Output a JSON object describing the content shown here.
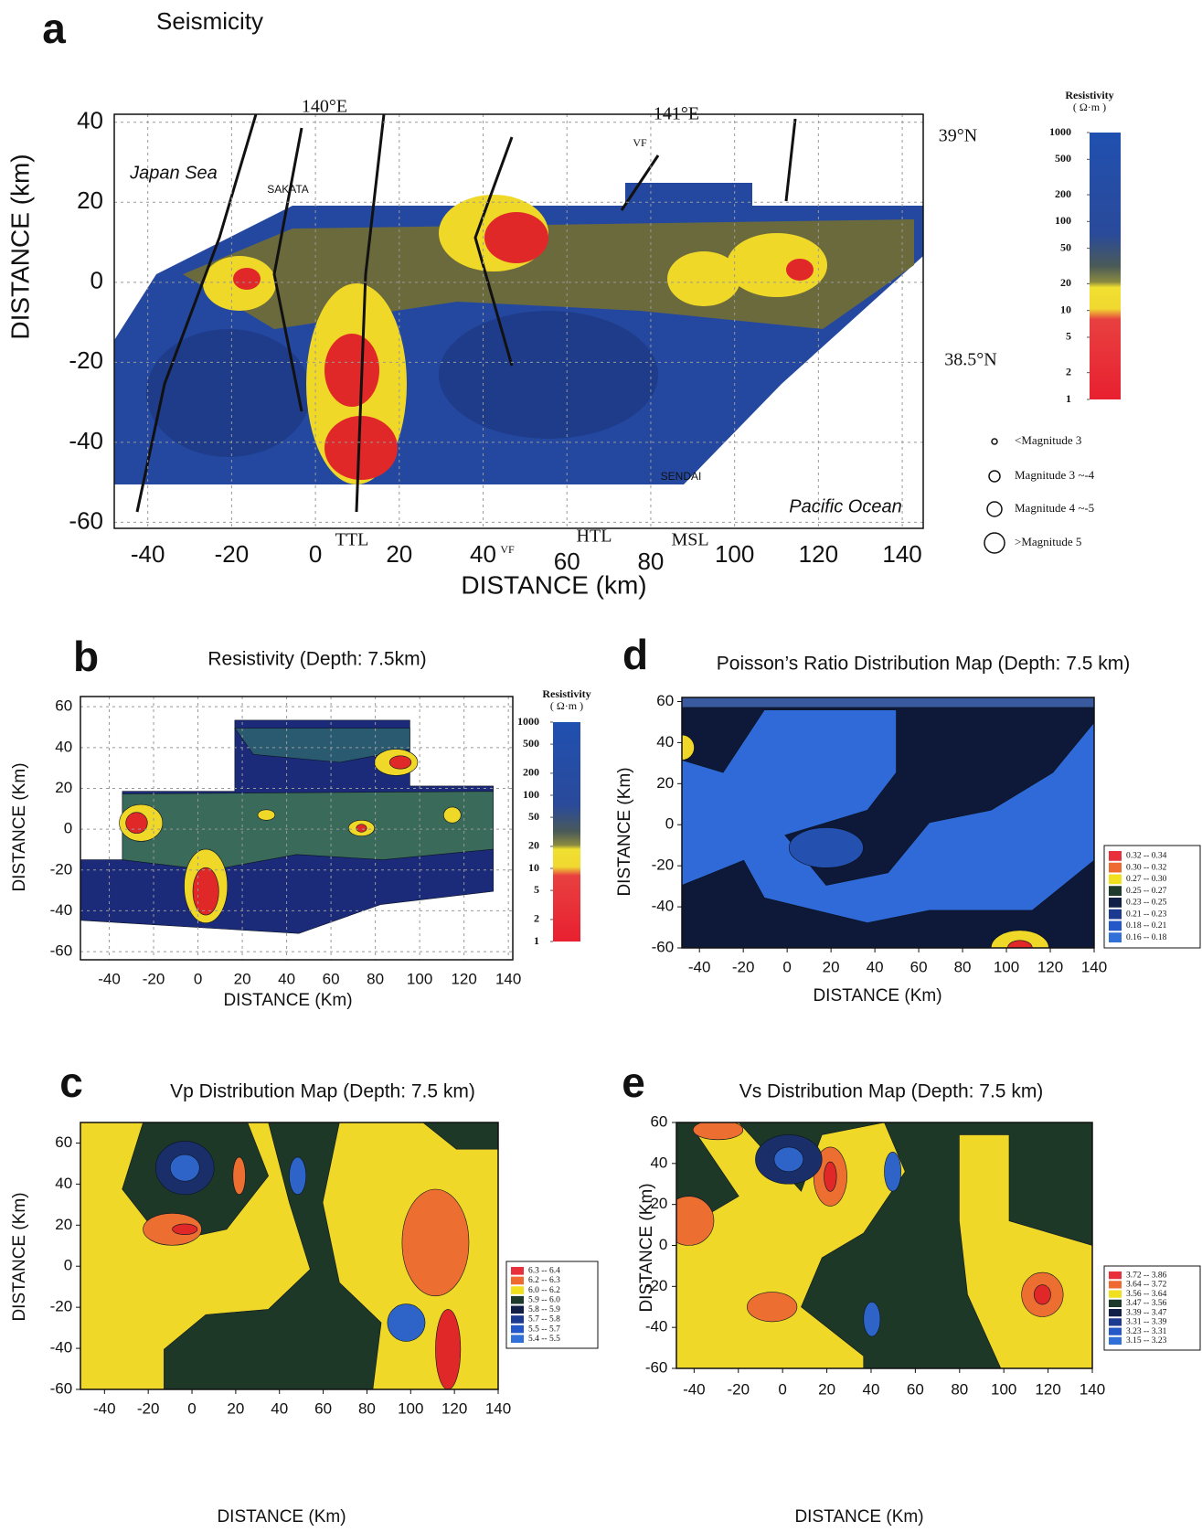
{
  "chart_data": [
    {
      "type": "seismicity_map",
      "panel_label": "a",
      "title": "Seismicity",
      "x_label": "DISTANCE (km)",
      "y_label": "DISTANCE (km)",
      "xlim": [
        -48,
        145
      ],
      "ylim": [
        -61.5,
        42
      ],
      "xticks": [
        -40,
        -20,
        0,
        20,
        40,
        60,
        80,
        100,
        120,
        140
      ],
      "yticks": [
        40,
        20,
        0,
        -20,
        -40,
        -60
      ],
      "grid": true,
      "annotations": [
        "140°E",
        "141°E",
        "39°N",
        "38.5°N",
        "Japan Sea",
        "SAKATA",
        "Pacific Ocean",
        "SENDAI",
        "TTL",
        "VF",
        "HTL",
        "MSL",
        "VF"
      ],
      "colorbar": {
        "title": "Resistivity",
        "unit": "( Ω·m )",
        "lim": [
          1,
          1000
        ],
        "log": true,
        "ticks": [
          1000,
          500,
          200,
          100,
          50,
          20,
          10,
          5,
          2,
          1
        ]
      },
      "magnitude_legend": [
        "<Magnitude 3",
        "Magnitude 3 ~-4",
        "Magnitude 4 ~-5",
        ">Magnitude 5"
      ]
    },
    {
      "type": "contour_map",
      "panel_label": "b",
      "title": "Resistivity (Depth: 7.5km)",
      "x_label": "DISTANCE (Km)",
      "y_label": "DISTANCE (Km)",
      "xlim": [
        -53,
        142
      ],
      "ylim": [
        -64,
        65
      ],
      "xticks": [
        -40,
        -20,
        0,
        20,
        40,
        60,
        80,
        100,
        120,
        140
      ],
      "yticks": [
        60,
        40,
        20,
        0,
        -20,
        -40,
        -60
      ],
      "grid": true,
      "colorbar": {
        "title": "Resistivity",
        "unit": "( Ω·m )",
        "lim": [
          1,
          1000
        ],
        "log": true,
        "ticks": [
          1000,
          500,
          200,
          100,
          50,
          20,
          10,
          5,
          2,
          1
        ]
      }
    },
    {
      "type": "contour_map",
      "panel_label": "d",
      "title": "Poisson’s Ratio Distribution Map (Depth: 7.5 km)",
      "x_label": "DISTANCE (Km)",
      "y_label": "DISTANCE (Km)",
      "xlim": [
        -48,
        140
      ],
      "ylim": [
        -60,
        62
      ],
      "xticks": [
        -40,
        -20,
        0,
        20,
        40,
        60,
        80,
        100,
        120,
        140
      ],
      "yticks": [
        60,
        40,
        20,
        0,
        -20,
        -40,
        -60
      ],
      "grid": false,
      "legend_classes": [
        {
          "label": "0.32 -- 0.34",
          "color": "#e8303c"
        },
        {
          "label": "0.30 -- 0.32",
          "color": "#ee6a30"
        },
        {
          "label": "0.27 -- 0.30",
          "color": "#f0e020"
        },
        {
          "label": "0.25 -- 0.27",
          "color": "#1e3a2c"
        },
        {
          "label": "0.23 -- 0.25",
          "color": "#122048"
        },
        {
          "label": "0.21 -- 0.23",
          "color": "#1c3a90"
        },
        {
          "label": "0.18 -- 0.21",
          "color": "#2458c8"
        },
        {
          "label": "0.16 -- 0.18",
          "color": "#3070d8"
        }
      ]
    },
    {
      "type": "contour_map",
      "panel_label": "c",
      "title": "Vp Distribution Map (Depth: 7.5 km)",
      "x_label": "DISTANCE (Km)",
      "y_label": "DISTANCE (Km)",
      "xlim": [
        -51,
        140
      ],
      "ylim": [
        -60,
        70
      ],
      "xticks": [
        -40,
        -20,
        0,
        20,
        40,
        60,
        80,
        100,
        120,
        140
      ],
      "yticks": [
        60,
        40,
        20,
        0,
        -20,
        -40,
        -60
      ],
      "grid": false,
      "legend_classes": [
        {
          "label": "6.3 -- 6.4",
          "color": "#e8303c"
        },
        {
          "label": "6.2 -- 6.3",
          "color": "#ee6a30"
        },
        {
          "label": "6.0 -- 6.2",
          "color": "#f0e020"
        },
        {
          "label": "5.9 -- 6.0",
          "color": "#1e3a2c"
        },
        {
          "label": "5.8 -- 5.9",
          "color": "#122048"
        },
        {
          "label": "5.7 -- 5.8",
          "color": "#1c3a90"
        },
        {
          "label": "5.5 -- 5.7",
          "color": "#2458c8"
        },
        {
          "label": "5.4 -- 5.5",
          "color": "#3070d8"
        }
      ]
    },
    {
      "type": "contour_map",
      "panel_label": "e",
      "title": "Vs Distribution Map (Depth: 7.5 km)",
      "x_label": "DISTANCE (Km)",
      "y_label": "DISTANCE (Km)",
      "xlim": [
        -48,
        140
      ],
      "ylim": [
        -60,
        60
      ],
      "xticks": [
        -40,
        -20,
        0,
        20,
        40,
        60,
        80,
        100,
        120,
        140
      ],
      "yticks": [
        60,
        40,
        20,
        0,
        -20,
        -40,
        -60
      ],
      "grid": false,
      "legend_classes": [
        {
          "label": "3.72 -- 3.86",
          "color": "#e8303c"
        },
        {
          "label": "3.64 -- 3.72",
          "color": "#ee6a30"
        },
        {
          "label": "3.56 -- 3.64",
          "color": "#f0e020"
        },
        {
          "label": "3.47 -- 3.56",
          "color": "#1e3a2c"
        },
        {
          "label": "3.39 -- 3.47",
          "color": "#122048"
        },
        {
          "label": "3.31 -- 3.39",
          "color": "#1c3a90"
        },
        {
          "label": "3.23 -- 3.31",
          "color": "#2458c8"
        },
        {
          "label": "3.15 -- 3.23",
          "color": "#3070d8"
        }
      ]
    }
  ]
}
